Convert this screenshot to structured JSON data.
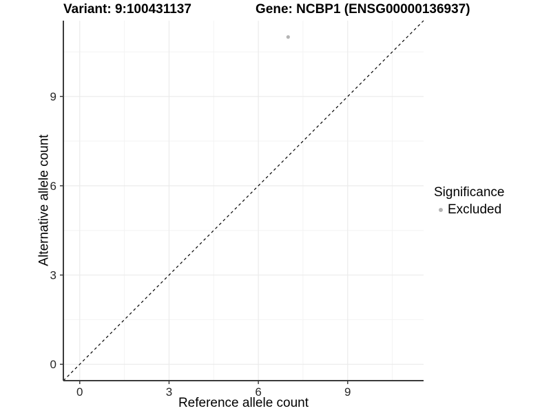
{
  "chart_data": {
    "type": "scatter",
    "title_left": "Variant: 9:100431137",
    "title_right": "Gene: NCBP1 (ENSG00000136937)",
    "xlabel": "Reference allele count",
    "ylabel": "Alternative allele count",
    "xlim": [
      -0.55,
      11.55
    ],
    "ylim": [
      -0.55,
      11.55
    ],
    "x_ticks": [
      0,
      3,
      6,
      9
    ],
    "y_ticks": [
      0,
      3,
      6,
      9
    ],
    "minor_gridlines": [
      1.5,
      4.5,
      7.5,
      10.5
    ],
    "grid": true,
    "identity_line": {
      "slope": 1,
      "intercept": 0,
      "style": "dashed",
      "color": "#000000"
    },
    "series": [
      {
        "name": "Excluded",
        "color": "#b4b4b4",
        "points": [
          {
            "x": 7,
            "y": 11
          }
        ]
      }
    ],
    "legend": {
      "title": "Significance",
      "position": "right",
      "entries": [
        {
          "label": "Excluded",
          "color": "#b4b4b4"
        }
      ]
    },
    "style": {
      "panel_background": "#ffffff",
      "grid_major_color": "#ebebeb",
      "grid_minor_color": "#f3f3f3",
      "axis_color": "#3a3a3a",
      "tick_label_color": "#262626",
      "point_radius": 2.6
    }
  }
}
